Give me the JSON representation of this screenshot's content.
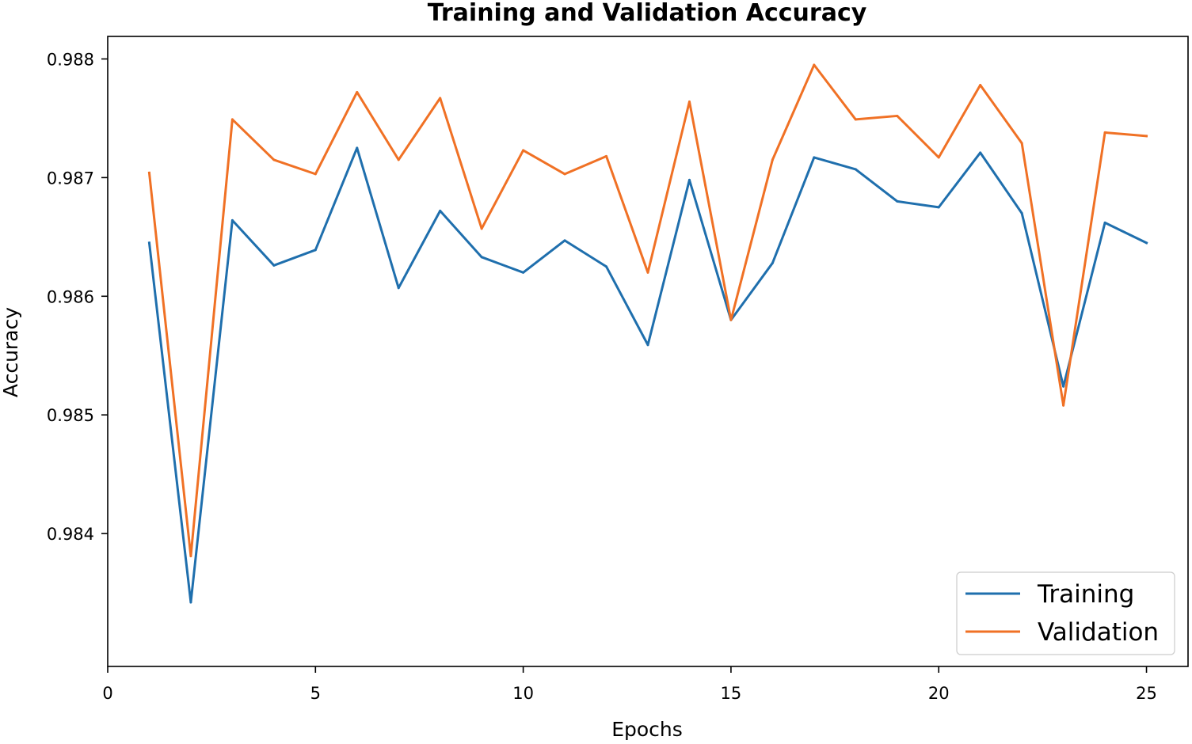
{
  "chart_data": {
    "type": "line",
    "title": "Training and Validation Accuracy",
    "xlabel": "Epochs",
    "ylabel": "Accuracy",
    "xlim": [
      0,
      26
    ],
    "ylim": [
      0.98288,
      0.98819
    ],
    "xticks": [
      0,
      5,
      10,
      15,
      20,
      25
    ],
    "xtick_labels": [
      "0",
      "5",
      "10",
      "15",
      "20",
      "25"
    ],
    "yticks": [
      0.984,
      0.985,
      0.986,
      0.987,
      0.988
    ],
    "ytick_labels": [
      "0.984",
      "0.985",
      "0.986",
      "0.987",
      "0.988"
    ],
    "grid": false,
    "legend_position": "bottom-right",
    "x": [
      1,
      2,
      3,
      4,
      5,
      6,
      7,
      8,
      9,
      10,
      11,
      12,
      13,
      14,
      15,
      16,
      17,
      18,
      19,
      20,
      21,
      22,
      23,
      24,
      25
    ],
    "series": [
      {
        "name": "Training",
        "color": "#1f6fad",
        "values": [
          0.98645,
          0.98342,
          0.98664,
          0.98626,
          0.98639,
          0.98725,
          0.98607,
          0.98672,
          0.98633,
          0.9862,
          0.98647,
          0.98625,
          0.98559,
          0.98698,
          0.9858,
          0.98628,
          0.98717,
          0.98707,
          0.9868,
          0.98675,
          0.98721,
          0.9867,
          0.98524,
          0.98662,
          0.98645
        ]
      },
      {
        "name": "Validation",
        "color": "#f07125",
        "values": [
          0.98704,
          0.98381,
          0.98749,
          0.98715,
          0.98703,
          0.98772,
          0.98715,
          0.98767,
          0.98657,
          0.98723,
          0.98703,
          0.98718,
          0.9862,
          0.98764,
          0.9858,
          0.98715,
          0.98795,
          0.98749,
          0.98752,
          0.98717,
          0.98778,
          0.98729,
          0.98508,
          0.98738,
          0.98735
        ]
      }
    ]
  }
}
